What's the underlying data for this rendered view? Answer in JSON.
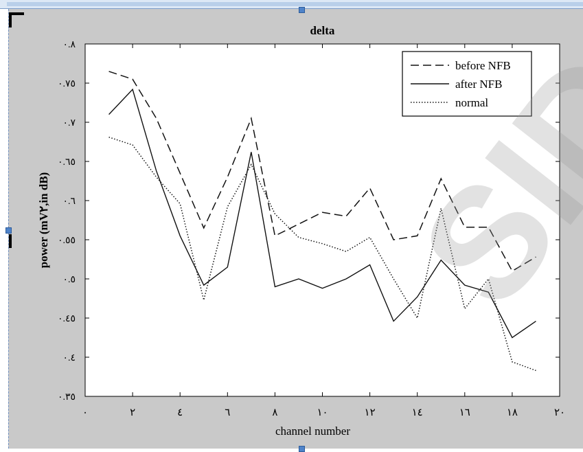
{
  "chart_data": {
    "type": "line",
    "title": "delta",
    "xlabel": "channel number",
    "ylabel": "power (mV٢,in dB)",
    "xlim": [
      0,
      20
    ],
    "ylim": [
      0.35,
      0.8
    ],
    "x_ticks": [
      0,
      2,
      4,
      6,
      8,
      10,
      12,
      14,
      16,
      18,
      20
    ],
    "x_tick_labels": [
      "٠",
      "٢",
      "٤",
      "٦",
      "٨",
      "١٠",
      "١٢",
      "١٤",
      "١٦",
      "١٨",
      "٢٠"
    ],
    "y_ticks": [
      0.35,
      0.4,
      0.45,
      0.5,
      0.55,
      0.6,
      0.65,
      0.7,
      0.75,
      0.8
    ],
    "y_tick_labels": [
      "٠.٣٥",
      "٠.٤",
      "٠.٤٥",
      "٠.٥",
      "٠.٥٥",
      "٠.٦",
      "٠.٦٥",
      "٠.٧",
      "٠.٧٥",
      "٠.٨"
    ],
    "legend_position": "top-right",
    "x": [
      1,
      2,
      3,
      4,
      5,
      6,
      7,
      8,
      9,
      10,
      11,
      12,
      13,
      14,
      15,
      16,
      17,
      18,
      19
    ],
    "series": [
      {
        "name": "before NFB",
        "style": "dashed",
        "values": [
          0.765,
          0.755,
          0.705,
          0.635,
          0.565,
          0.63,
          0.705,
          0.555,
          0.57,
          0.585,
          0.58,
          0.616,
          0.55,
          0.555,
          0.628,
          0.566,
          0.566,
          0.51,
          0.528
        ]
      },
      {
        "name": "after NFB",
        "style": "solid",
        "values": [
          0.71,
          0.742,
          0.638,
          0.555,
          0.492,
          0.515,
          0.662,
          0.49,
          0.5,
          0.488,
          0.5,
          0.518,
          0.446,
          0.477,
          0.524,
          0.492,
          0.483,
          0.425,
          0.446
        ]
      },
      {
        "name": "normal",
        "style": "dotted",
        "values": [
          0.681,
          0.671,
          0.63,
          0.596,
          0.473,
          0.592,
          0.646,
          0.583,
          0.553,
          0.545,
          0.535,
          0.553,
          0.5,
          0.45,
          0.59,
          0.462,
          0.5,
          0.394,
          0.383
        ]
      }
    ]
  },
  "colors": {
    "background": "#c9c9c9",
    "plot_bg": "#ffffff",
    "ink": "#000000",
    "watermark": "#999999"
  },
  "watermark": {
    "text": "SID"
  }
}
